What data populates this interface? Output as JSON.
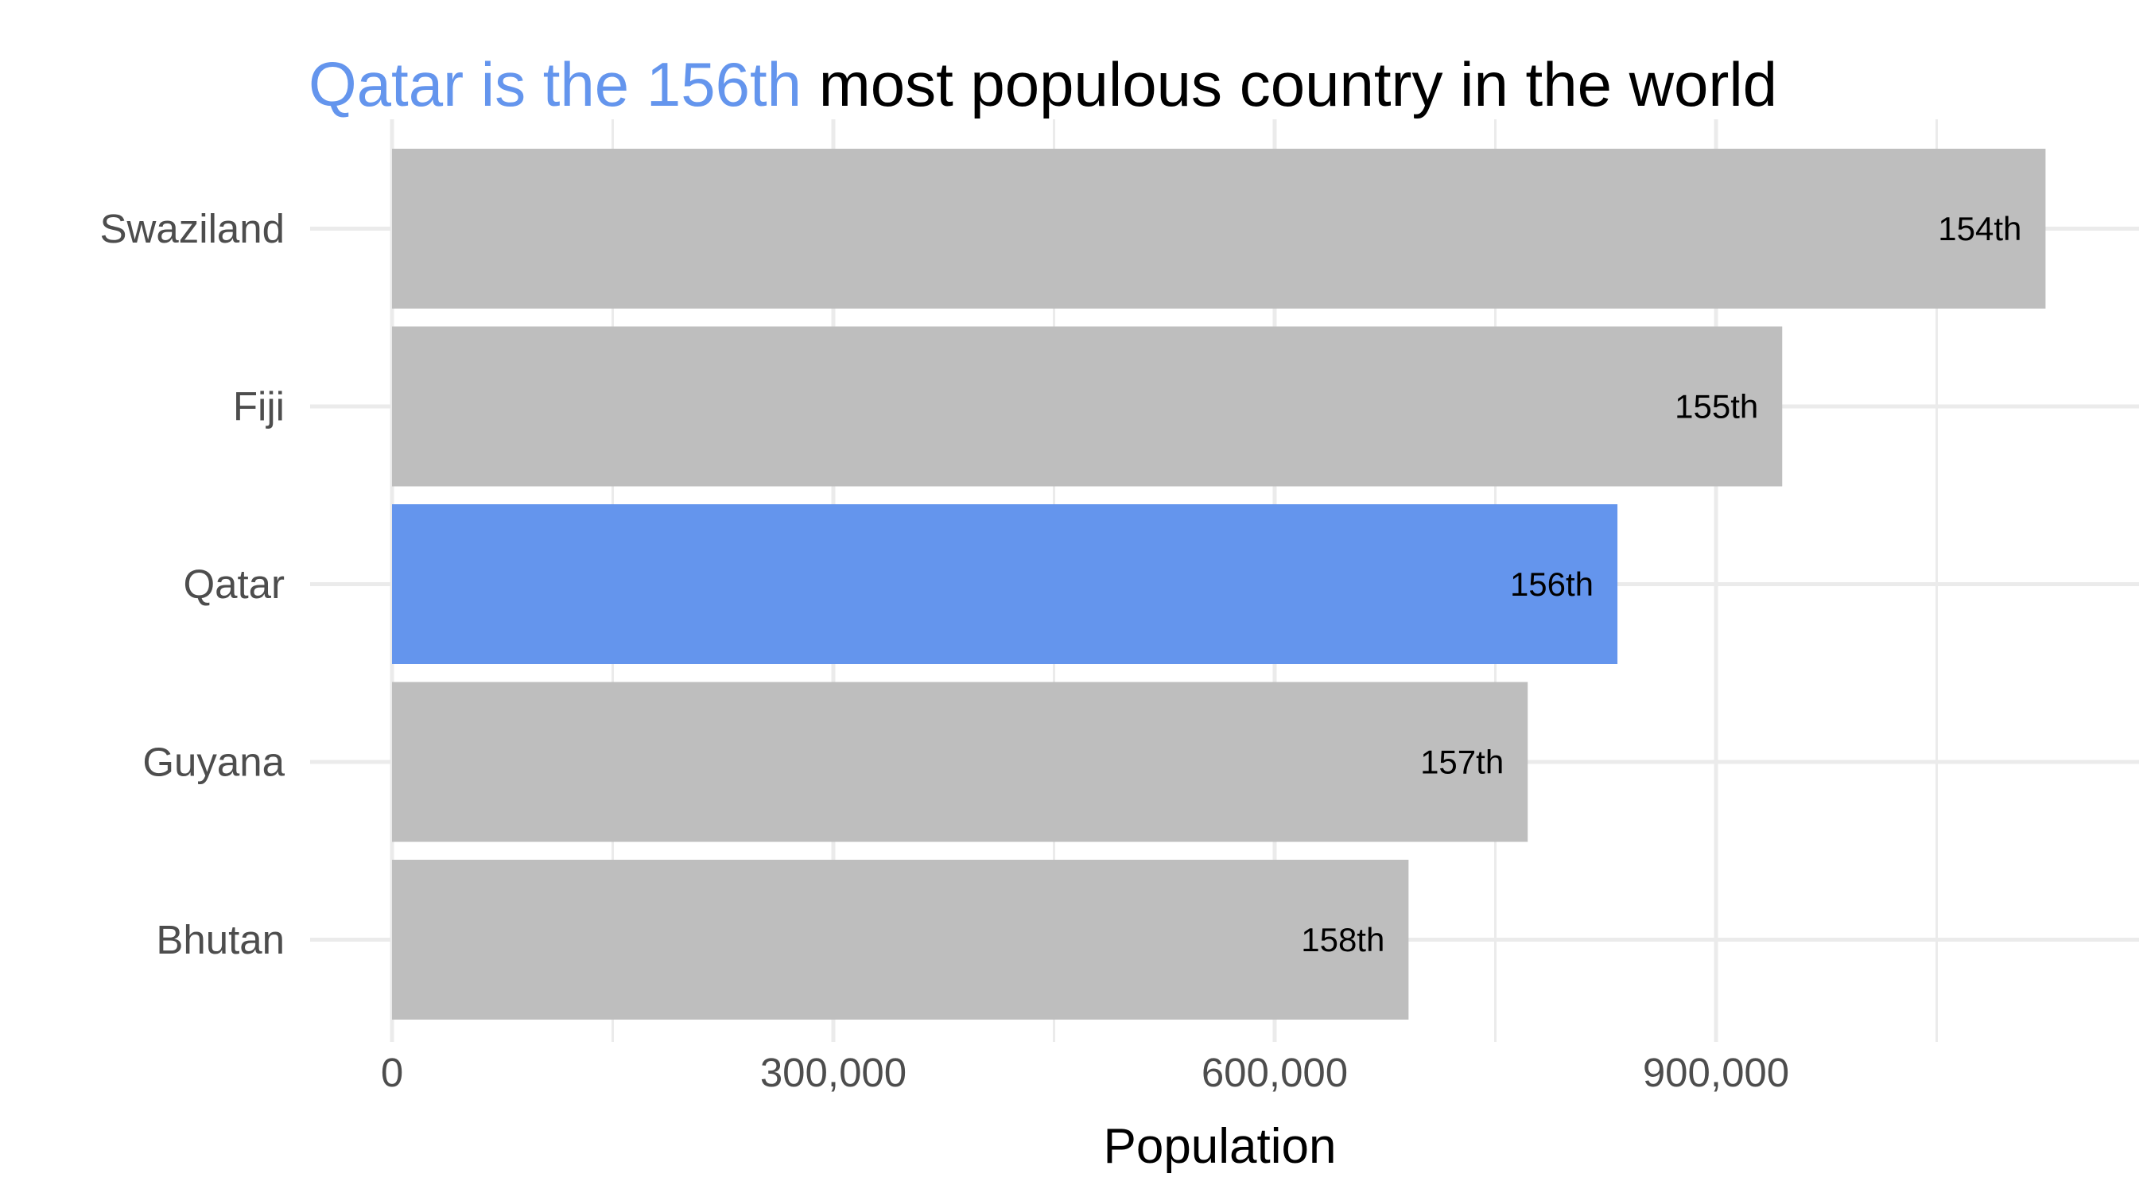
{
  "chart_data": {
    "type": "bar",
    "orientation": "horizontal",
    "title_highlight": "Qatar is the 156th",
    "title_rest": " most populous country in the world",
    "xlabel": "Population",
    "ylabel": "",
    "xlim": [
      0,
      1180000
    ],
    "x_ticks": [
      0,
      300000,
      600000,
      900000
    ],
    "x_tick_labels": [
      "0",
      "300,000",
      "600,000",
      "900,000"
    ],
    "categories": [
      "Swaziland",
      "Fiji",
      "Qatar",
      "Guyana",
      "Bhutan"
    ],
    "values": [
      1124000,
      945000,
      833000,
      772000,
      691000
    ],
    "bar_labels": [
      "154th",
      "155th",
      "156th",
      "157th",
      "158th"
    ],
    "highlight_category": "Qatar",
    "colors": {
      "highlight": "#6495ED",
      "default": "#BEBEBE",
      "grid": "#EBEBEB"
    },
    "grid": true,
    "legend": "none"
  }
}
